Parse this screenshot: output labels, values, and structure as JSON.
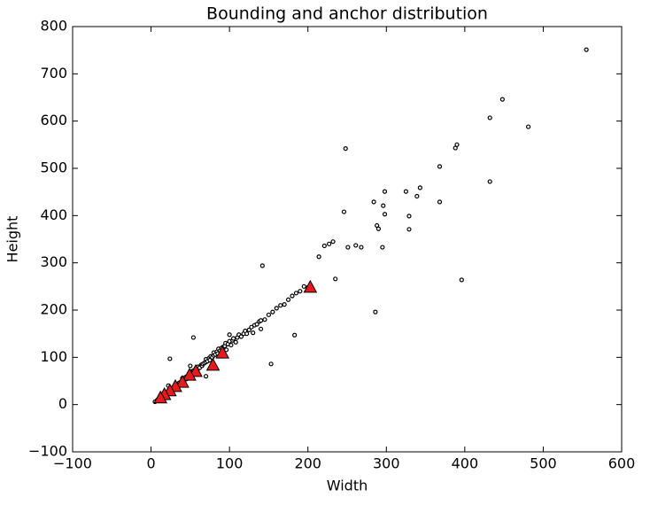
{
  "chart_data": {
    "type": "scatter",
    "title": "Bounding and anchor distribution",
    "x_label": "Width",
    "y_label": "Height",
    "xlim": [
      -100,
      600
    ],
    "ylim": [
      -100,
      800
    ],
    "xticks": [
      {
        "value": -100,
        "label": "−100"
      },
      0,
      100,
      200,
      300,
      400,
      500,
      600
    ],
    "yticks": [
      {
        "value": -100,
        "label": "−100"
      },
      0,
      100,
      200,
      300,
      400,
      500,
      600,
      700,
      800
    ],
    "series": [
      {
        "marker": "circle",
        "color": "#ffffff",
        "x": [
          555,
          448,
          432,
          481,
          390,
          388,
          248,
          368,
          432,
          343,
          339,
          325,
          298,
          368,
          284,
          296,
          298,
          329,
          329,
          246,
          288,
          290,
          295,
          268,
          261,
          251,
          232,
          227,
          221,
          214,
          235,
          142,
          396,
          286,
          183,
          153,
          54,
          24,
          5,
          8,
          10,
          12,
          14,
          15,
          17,
          18,
          20,
          22,
          23,
          25,
          26,
          28,
          30,
          30,
          32,
          34,
          35,
          36,
          38,
          40,
          40,
          42,
          44,
          45,
          46,
          48,
          50,
          50,
          52,
          54,
          55,
          56,
          58,
          60,
          60,
          62,
          64,
          65,
          66,
          68,
          70,
          70,
          72,
          74,
          75,
          76,
          78,
          80,
          80,
          82,
          84,
          85,
          86,
          88,
          90,
          92,
          94,
          95,
          96,
          98,
          100,
          102,
          104,
          105,
          108,
          110,
          112,
          115,
          118,
          120,
          122,
          125,
          128,
          130,
          132,
          135,
          138,
          140,
          145,
          150,
          155,
          160,
          165,
          170,
          175,
          180,
          185,
          190,
          195,
          200,
          22,
          50,
          70,
          92,
          100,
          140
        ],
        "values": [
          751,
          646,
          607,
          588,
          550,
          543,
          542,
          504,
          472,
          459,
          441,
          451,
          451,
          429,
          429,
          421,
          403,
          399,
          371,
          408,
          379,
          372,
          333,
          333,
          337,
          333,
          345,
          340,
          336,
          313,
          266,
          294,
          264,
          196,
          147,
          86,
          142,
          97,
          6,
          10,
          12,
          14,
          18,
          16,
          22,
          20,
          26,
          28,
          24,
          32,
          30,
          36,
          34,
          38,
          40,
          44,
          42,
          46,
          48,
          50,
          56,
          52,
          58,
          54,
          60,
          62,
          64,
          70,
          62,
          72,
          66,
          68,
          74,
          76,
          80,
          78,
          84,
          82,
          86,
          88,
          90,
          96,
          92,
          98,
          94,
          102,
          100,
          104,
          110,
          106,
          112,
          108,
          118,
          114,
          120,
          122,
          124,
          130,
          116,
          128,
          134,
          126,
          136,
          140,
          132,
          142,
          148,
          144,
          150,
          156,
          150,
          158,
          164,
          152,
          168,
          170,
          176,
          178,
          180,
          190,
          196,
          204,
          210,
          212,
          222,
          230,
          236,
          240,
          250,
          248,
          40,
          82,
          60,
          112,
          148,
          160
        ]
      },
      {
        "marker": "triangle",
        "color": "#e8191c",
        "x": [
          203,
          91,
          79,
          57,
          49,
          40,
          31,
          24,
          17,
          12
        ],
        "values": [
          247,
          108,
          82,
          69,
          61,
          46,
          37,
          28,
          20,
          13
        ]
      }
    ]
  }
}
